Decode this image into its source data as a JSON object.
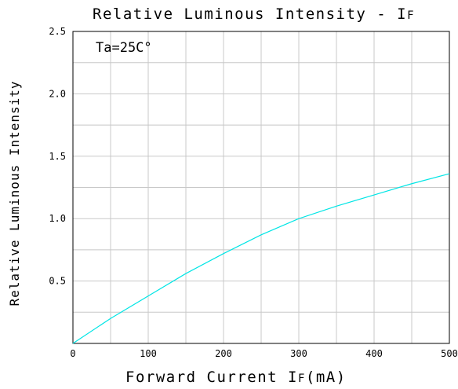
{
  "chart_data": {
    "type": "line",
    "title": "Relative Luminous Intensity - I",
    "title_subscript": "F",
    "xlabel_prefix": "Forward Current I",
    "xlabel_subscript": "F",
    "xlabel_suffix": "(mA)",
    "ylabel": "Relative Luminous Intensity",
    "annotation": "Ta=25C°",
    "xlim": [
      0,
      500
    ],
    "ylim": [
      0,
      2.5
    ],
    "x_ticks": [
      0,
      100,
      200,
      300,
      400,
      500
    ],
    "x_tick_labels": [
      "0",
      "100",
      "200",
      "300",
      "400",
      "500"
    ],
    "y_ticks": [
      0.5,
      1.0,
      1.5,
      2.0,
      2.5
    ],
    "y_tick_labels": [
      "0.5",
      "1.0",
      "1.5",
      "2.0",
      "2.5"
    ],
    "grid": true,
    "line_color": "#00e5e5",
    "series": [
      {
        "x": [
          0,
          50,
          100,
          150,
          200,
          250,
          300,
          350,
          400,
          450,
          500
        ],
        "y": [
          0,
          0.2,
          0.38,
          0.56,
          0.72,
          0.87,
          1.0,
          1.1,
          1.19,
          1.28,
          1.36
        ]
      }
    ]
  }
}
